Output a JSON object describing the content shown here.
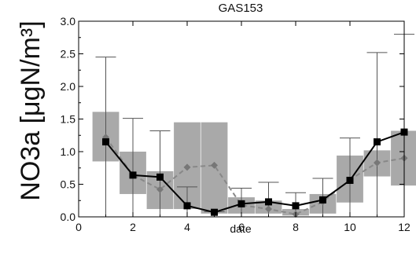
{
  "chart_data": {
    "type": "line",
    "title": "GAS153",
    "xlabel": "date",
    "ylabel": "NO3a [μgN/m³]",
    "xlim": [
      0,
      12
    ],
    "ylim": [
      0,
      3.0
    ],
    "x_ticks": [
      {
        "value": 0,
        "label": "0"
      },
      {
        "value": 2,
        "label": "2"
      },
      {
        "value": 4,
        "label": "4"
      },
      {
        "value": 6,
        "label": "6"
      },
      {
        "value": 8,
        "label": "8"
      },
      {
        "value": 10,
        "label": "10"
      },
      {
        "value": 12,
        "label": "12"
      }
    ],
    "y_ticks": [
      {
        "value": 0.0,
        "label": "0.0"
      },
      {
        "value": 0.5,
        "label": "0.5"
      },
      {
        "value": 1.0,
        "label": "1.0"
      },
      {
        "value": 1.5,
        "label": "1.5"
      },
      {
        "value": 2.0,
        "label": "2.0"
      },
      {
        "value": 2.5,
        "label": "2.5"
      },
      {
        "value": 3.0,
        "label": "3.0"
      }
    ],
    "x": [
      1,
      2,
      3,
      4,
      5,
      6,
      7,
      8,
      9,
      10,
      11,
      12
    ],
    "series": [
      {
        "style": "solid",
        "marker": "square",
        "color": "#000000",
        "values": [
          1.15,
          0.64,
          0.61,
          0.17,
          0.07,
          0.2,
          0.23,
          0.17,
          0.26,
          0.56,
          1.15,
          1.3
        ],
        "error_max": [
          2.45,
          1.51,
          1.32,
          0.46,
          0.08,
          0.44,
          0.53,
          0.37,
          0.59,
          1.21,
          2.52,
          2.8
        ]
      },
      {
        "style": "dashed",
        "marker": "diamond",
        "color": "#888888",
        "values": [
          1.22,
          0.64,
          0.42,
          0.76,
          0.79,
          0.18,
          0.12,
          0.04,
          0.23,
          0.57,
          0.83,
          0.9
        ],
        "box_low": [
          0.85,
          0.35,
          0.12,
          0.12,
          0.05,
          0.05,
          0.05,
          0.02,
          0.05,
          0.22,
          0.62,
          0.48
        ],
        "box_high": [
          1.61,
          1.0,
          0.7,
          1.45,
          1.45,
          0.3,
          0.25,
          0.12,
          0.35,
          0.94,
          1.02,
          1.32
        ]
      }
    ],
    "grid": false,
    "colors": {
      "box": "#a9a9a9",
      "axis": "#000000",
      "error_bar": "#555555"
    }
  }
}
